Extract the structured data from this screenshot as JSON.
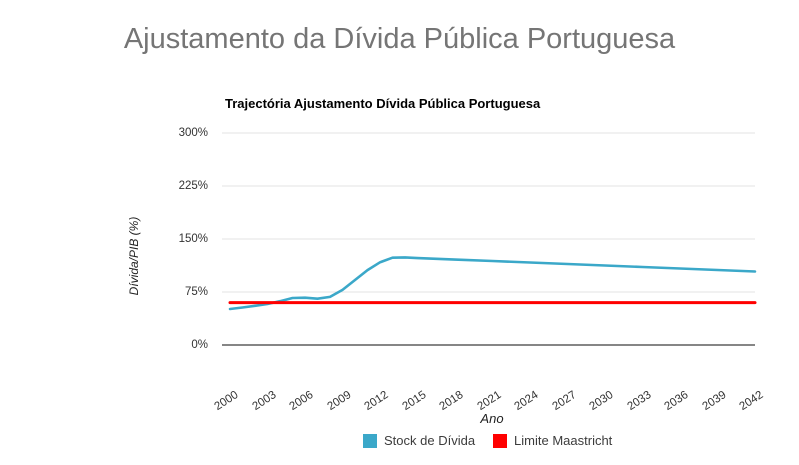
{
  "page": {
    "title": "Ajustamento da Dívida Pública Portuguesa"
  },
  "chart": {
    "title": "Trajectória Ajustamento Dívida Pública Portuguesa",
    "y_axis": {
      "label": "Dívida/PIB (%)",
      "tick_labels": [
        "0%",
        "75%",
        "150%",
        "225%",
        "300%"
      ]
    },
    "x_axis": {
      "label": "Ano",
      "tick_labels": [
        "2000",
        "2003",
        "2006",
        "2009",
        "2012",
        "2015",
        "2018",
        "2021",
        "2024",
        "2027",
        "2030",
        "2033",
        "2036",
        "2039",
        "2042"
      ]
    },
    "legend": [
      {
        "label": "Stock de Dívida",
        "color": "#3BA8C9"
      },
      {
        "label": "Limite Maastricht",
        "color": "#FF0000"
      }
    ]
  },
  "chart_data": {
    "type": "line",
    "title": "Trajectória Ajustamento Dívida Pública Portuguesa",
    "xlabel": "Ano",
    "ylabel": "Dívida/PIB (%)",
    "xlim": [
      2000,
      2042
    ],
    "ylim": [
      0,
      300
    ],
    "y_ticks": [
      0,
      75,
      150,
      225,
      300
    ],
    "x_ticks": [
      2000,
      2003,
      2006,
      2009,
      2012,
      2015,
      2018,
      2021,
      2024,
      2027,
      2030,
      2033,
      2036,
      2039,
      2042
    ],
    "grid": true,
    "legend_position": "bottom",
    "x": [
      2000,
      2001,
      2002,
      2003,
      2004,
      2005,
      2006,
      2007,
      2008,
      2009,
      2010,
      2011,
      2012,
      2013,
      2014,
      2015,
      2018,
      2021,
      2024,
      2027,
      2030,
      2033,
      2036,
      2039,
      2042
    ],
    "series": [
      {
        "name": "Stock de Dívida",
        "color": "#3BA8C9",
        "values": [
          51,
          53,
          55.5,
          58,
          62,
          66.5,
          67,
          65.5,
          68,
          78,
          92,
          106,
          117,
          123.5,
          124,
          123,
          120.9,
          118.8,
          116.7,
          114.6,
          112.5,
          110.4,
          108.3,
          106.2,
          104
        ]
      },
      {
        "name": "Limite Maastricht",
        "color": "#FF0000",
        "values": [
          60,
          60,
          60,
          60,
          60,
          60,
          60,
          60,
          60,
          60,
          60,
          60,
          60,
          60,
          60,
          60,
          60,
          60,
          60,
          60,
          60,
          60,
          60,
          60,
          60
        ]
      }
    ],
    "colors": {
      "gridline": "#e3e3e3",
      "baseline": "#5f5f5f",
      "tick_text": "#333333",
      "title_text": "#757575"
    }
  }
}
